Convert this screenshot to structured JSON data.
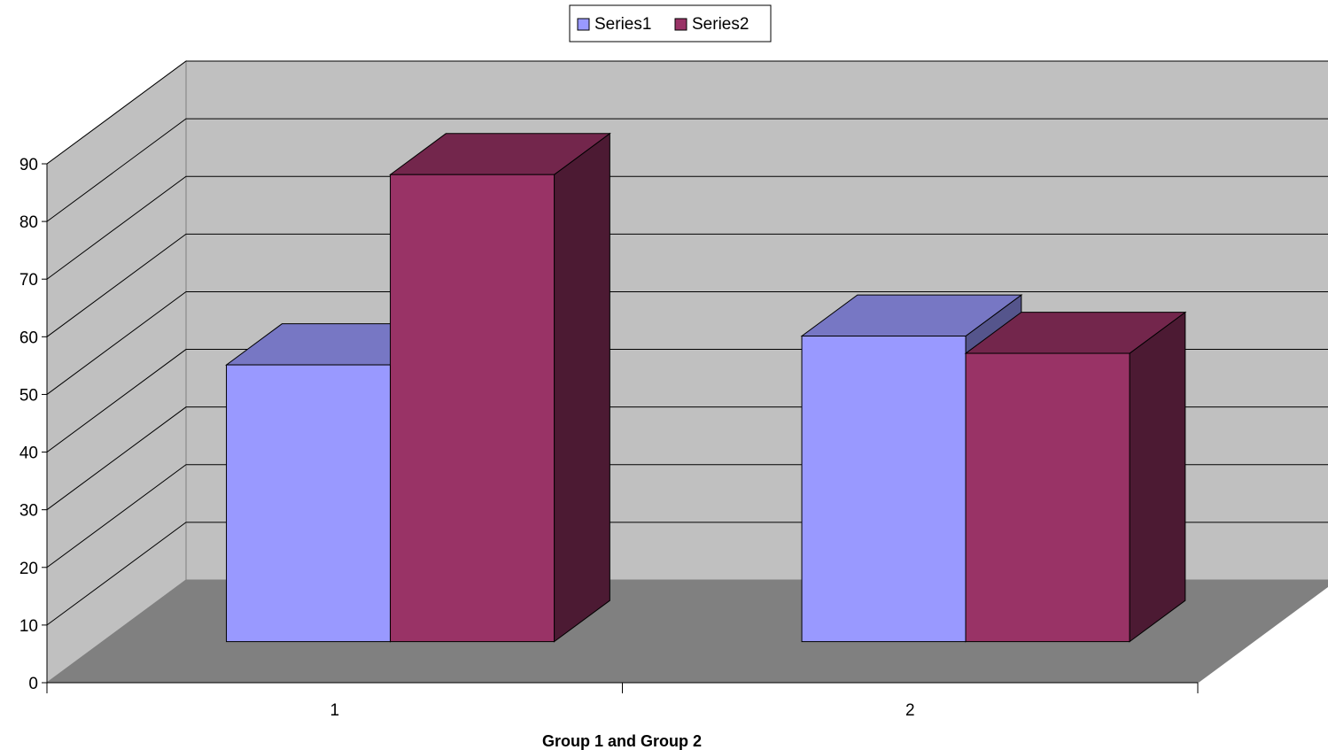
{
  "chart_data": {
    "type": "bar",
    "categories": [
      "1",
      "2"
    ],
    "series": [
      {
        "name": "Series1",
        "values": [
          48,
          53
        ]
      },
      {
        "name": "Series2",
        "values": [
          81,
          50
        ]
      }
    ],
    "title": "",
    "xlabel": "Group 1 and Group 2",
    "ylabel": "",
    "ylim": [
      0,
      90
    ],
    "yticks": [
      "0",
      "10",
      "20",
      "30",
      "40",
      "50",
      "60",
      "70",
      "80",
      "90"
    ],
    "grid": true,
    "legend_position": "top",
    "projection": "3d",
    "colors": {
      "series": [
        {
          "front": "#9999ff",
          "top": "#7777c4",
          "side": "#55558c"
        },
        {
          "front": "#993366",
          "top": "#73264c",
          "side": "#4c1a33"
        }
      ],
      "back_wall": "#c0c0c0",
      "side_wall": "#c0c0c0",
      "floor": "#808080",
      "gridline": "#000000"
    }
  }
}
